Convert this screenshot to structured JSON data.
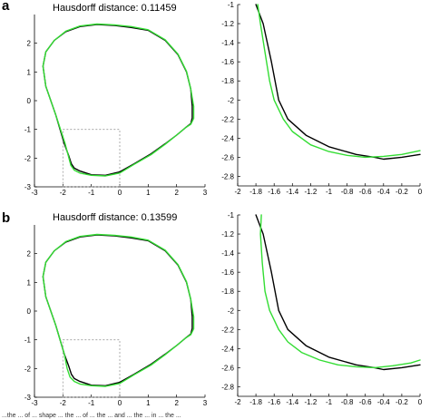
{
  "colors": {
    "series_black": "#000000",
    "series_green": "#33dd33",
    "zoom_box": "#9a9a9a"
  },
  "caption": "...the ... of ... shape ... the ... of ... the ... and ... the ... in ... the ...",
  "chart_data": [
    {
      "type": "line",
      "panel": "a",
      "title": "Hausdorff distance: 0.11459",
      "xlim": [
        -3,
        3
      ],
      "ylim": [
        -3,
        3
      ],
      "xticks": [
        "-3",
        "-2",
        "-1",
        "0",
        "1",
        "2",
        "3"
      ],
      "yticks": [
        "-3",
        "-2",
        "-1",
        "0",
        "1",
        "2"
      ],
      "zoom_box": {
        "x": [
          -2,
          0
        ],
        "y": [
          -3,
          -1
        ]
      },
      "series": [
        {
          "color": "black",
          "x": [
            0.4,
            1.0,
            1.6,
            2.05,
            2.35,
            2.5,
            2.55,
            2.55,
            2.5,
            2.3,
            2.0,
            1.6,
            1.1,
            0.5,
            0.0,
            -0.5,
            -1.0,
            -1.4,
            -1.6,
            -1.7,
            -1.8,
            -1.95,
            -2.25,
            -2.6,
            -2.7,
            -2.6,
            -2.3,
            -1.9,
            -1.4,
            -0.8,
            -0.2,
            0.4
          ],
          "y": [
            2.55,
            2.45,
            2.1,
            1.6,
            1.0,
            0.4,
            -0.2,
            -0.6,
            -0.8,
            -0.95,
            -1.2,
            -1.5,
            -1.85,
            -2.2,
            -2.48,
            -2.6,
            -2.58,
            -2.45,
            -2.35,
            -2.2,
            -1.9,
            -1.5,
            -0.5,
            0.5,
            1.2,
            1.7,
            2.1,
            2.4,
            2.58,
            2.65,
            2.62,
            2.55
          ]
        },
        {
          "color": "green",
          "x": [
            0.4,
            1.0,
            1.6,
            2.05,
            2.35,
            2.5,
            2.6,
            2.6,
            2.5,
            2.3,
            2.0,
            1.6,
            1.1,
            0.5,
            0.0,
            -0.5,
            -1.0,
            -1.4,
            -1.6,
            -1.72,
            -1.8,
            -1.92,
            -2.25,
            -2.6,
            -2.7,
            -2.6,
            -2.3,
            -1.9,
            -1.4,
            -0.8,
            -0.2,
            0.4
          ],
          "y": [
            2.58,
            2.47,
            2.12,
            1.62,
            1.02,
            0.4,
            -0.2,
            -0.62,
            -0.82,
            -0.95,
            -1.2,
            -1.52,
            -1.88,
            -2.22,
            -2.52,
            -2.62,
            -2.6,
            -2.52,
            -2.42,
            -2.25,
            -1.95,
            -1.5,
            -0.5,
            0.5,
            1.2,
            1.7,
            2.1,
            2.42,
            2.6,
            2.67,
            2.64,
            2.58
          ]
        }
      ]
    },
    {
      "type": "line",
      "panel": "a-zoom",
      "title": "",
      "xlim": [
        -2,
        0
      ],
      "ylim": [
        -2.9,
        -1
      ],
      "xticks": [
        "-2",
        "-1.8",
        "-1.6",
        "-1.4",
        "-1.2",
        "-1",
        "-0.8",
        "-0.6",
        "-0.4",
        "-0.2",
        "0"
      ],
      "yticks": [
        "-1",
        "-1.2",
        "-1.4",
        "-1.6",
        "-1.8",
        "-2",
        "-2.2",
        "-2.4",
        "-2.6",
        "-2.8"
      ],
      "series": [
        {
          "color": "black",
          "x": [
            -1.8,
            -1.72,
            -1.63,
            -1.55,
            -1.45,
            -1.25,
            -1.0,
            -0.7,
            -0.5,
            -0.4,
            -0.2,
            0.0
          ],
          "y": [
            -1.0,
            -1.2,
            -1.6,
            -2.0,
            -2.2,
            -2.37,
            -2.49,
            -2.57,
            -2.6,
            -2.62,
            -2.6,
            -2.57
          ]
        },
        {
          "color": "green",
          "x": [
            -1.78,
            -1.75,
            -1.7,
            -1.65,
            -1.6,
            -1.5,
            -1.4,
            -1.2,
            -1.0,
            -0.8,
            -0.6,
            -0.4,
            -0.2,
            0.0
          ],
          "y": [
            -1.0,
            -1.2,
            -1.5,
            -1.8,
            -2.0,
            -2.2,
            -2.33,
            -2.47,
            -2.54,
            -2.58,
            -2.6,
            -2.59,
            -2.57,
            -2.53
          ]
        }
      ]
    },
    {
      "type": "line",
      "panel": "b",
      "title": "Hausdorff distance: 0.13599",
      "xlim": [
        -3,
        3
      ],
      "ylim": [
        -3,
        3
      ],
      "xticks": [
        "-3",
        "-2",
        "-1",
        "0",
        "1",
        "2",
        "3"
      ],
      "yticks": [
        "-3",
        "-2",
        "-1",
        "0",
        "1",
        "2"
      ],
      "zoom_box": {
        "x": [
          -2,
          0
        ],
        "y": [
          -3,
          -1
        ]
      },
      "series": [
        {
          "color": "black",
          "x": [
            0.4,
            1.0,
            1.6,
            2.05,
            2.35,
            2.5,
            2.55,
            2.55,
            2.5,
            2.3,
            2.0,
            1.6,
            1.1,
            0.5,
            0.0,
            -0.5,
            -1.0,
            -1.4,
            -1.6,
            -1.7,
            -1.8,
            -1.95,
            -2.25,
            -2.6,
            -2.7,
            -2.6,
            -2.3,
            -1.9,
            -1.4,
            -0.8,
            -0.2,
            0.4
          ],
          "y": [
            2.55,
            2.45,
            2.1,
            1.6,
            1.0,
            0.4,
            -0.2,
            -0.6,
            -0.8,
            -0.95,
            -1.2,
            -1.5,
            -1.85,
            -2.2,
            -2.48,
            -2.6,
            -2.58,
            -2.45,
            -2.35,
            -2.2,
            -1.9,
            -1.5,
            -0.5,
            0.5,
            1.2,
            1.7,
            2.1,
            2.4,
            2.58,
            2.65,
            2.62,
            2.55
          ]
        },
        {
          "color": "green",
          "x": [
            0.4,
            1.0,
            1.6,
            2.05,
            2.35,
            2.5,
            2.6,
            2.6,
            2.5,
            2.3,
            2.0,
            1.6,
            1.1,
            0.5,
            0.0,
            -0.5,
            -1.0,
            -1.4,
            -1.6,
            -1.75,
            -1.85,
            -1.95,
            -2.25,
            -2.6,
            -2.7,
            -2.6,
            -2.3,
            -1.9,
            -1.4,
            -0.8,
            -0.2,
            0.4
          ],
          "y": [
            2.58,
            2.47,
            2.12,
            1.62,
            1.02,
            0.4,
            -0.2,
            -0.62,
            -0.82,
            -0.95,
            -1.2,
            -1.52,
            -1.88,
            -2.22,
            -2.52,
            -2.62,
            -2.6,
            -2.54,
            -2.45,
            -2.3,
            -2.0,
            -1.5,
            -0.5,
            0.5,
            1.2,
            1.7,
            2.1,
            2.42,
            2.6,
            2.67,
            2.64,
            2.58
          ]
        }
      ]
    },
    {
      "type": "line",
      "panel": "b-zoom",
      "title": "",
      "xlim": [
        -2,
        0
      ],
      "ylim": [
        -2.9,
        -1
      ],
      "xticks": [
        "-2",
        "-1.8",
        "-1.6",
        "-1.4",
        "-1.2",
        "-1",
        "-0.8",
        "-0.6",
        "-0.4",
        "-0.2",
        "0"
      ],
      "yticks": [
        "-1",
        "-1.2",
        "-1.4",
        "-1.6",
        "-1.8",
        "-2",
        "-2.2",
        "-2.4",
        "-2.6",
        "-2.8"
      ],
      "series": [
        {
          "color": "black",
          "x": [
            -1.8,
            -1.72,
            -1.63,
            -1.55,
            -1.45,
            -1.25,
            -1.0,
            -0.7,
            -0.5,
            -0.4,
            -0.2,
            0.0
          ],
          "y": [
            -1.0,
            -1.2,
            -1.6,
            -2.0,
            -2.2,
            -2.37,
            -2.49,
            -2.57,
            -2.6,
            -2.62,
            -2.6,
            -2.57
          ]
        },
        {
          "color": "green",
          "x": [
            -1.74,
            -1.75,
            -1.73,
            -1.7,
            -1.65,
            -1.55,
            -1.45,
            -1.3,
            -1.1,
            -0.9,
            -0.7,
            -0.5,
            -0.3,
            -0.1,
            0.0
          ],
          "y": [
            -1.0,
            -1.2,
            -1.5,
            -1.8,
            -2.0,
            -2.2,
            -2.33,
            -2.44,
            -2.52,
            -2.57,
            -2.59,
            -2.6,
            -2.58,
            -2.55,
            -2.52
          ]
        }
      ]
    }
  ]
}
